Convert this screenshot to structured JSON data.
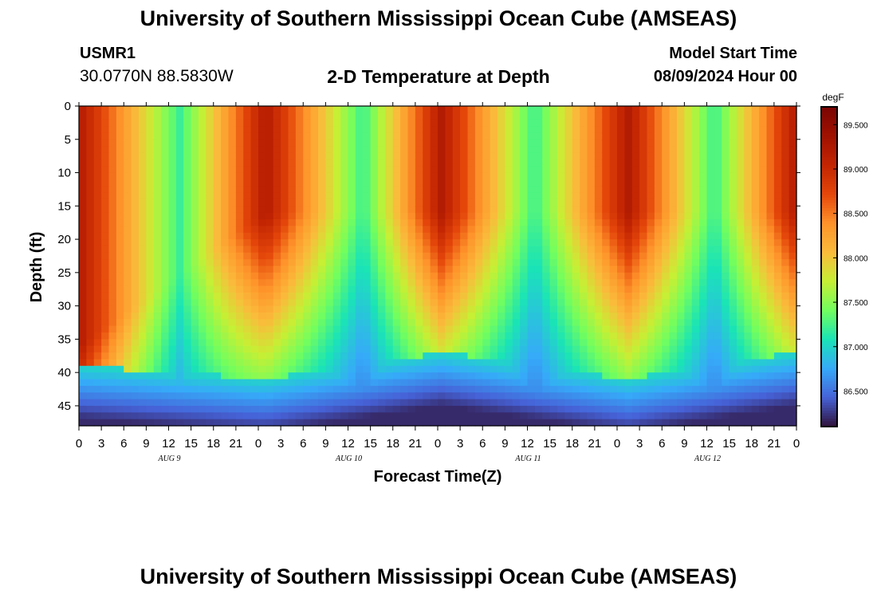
{
  "page": {
    "title": "University of Southern Mississippi Ocean Cube (AMSEAS)",
    "title_repeat": "University of Southern Mississippi Ocean Cube (AMSEAS)",
    "station_id": "USMR1",
    "station_coords": "30.0770N  88.5830W",
    "subtitle": "2-D Temperature at Depth",
    "model_start_label": "Model Start Time",
    "model_start_value": "08/09/2024 Hour 00"
  },
  "chart_data": {
    "type": "heatmap",
    "title": "2-D Temperature at Depth",
    "xlabel": "Forecast Time(Z)",
    "ylabel": "Depth (ft)",
    "units": "degF",
    "x_range_hours": [
      0,
      96
    ],
    "x_tick_hours": [
      0,
      3,
      6,
      9,
      12,
      15,
      18,
      21,
      24,
      27,
      30,
      33,
      36,
      39,
      42,
      45,
      48,
      51,
      54,
      57,
      60,
      63,
      66,
      69,
      72,
      75,
      78,
      81,
      84,
      87,
      90,
      93,
      96
    ],
    "x_tick_labels": [
      "0",
      "3",
      "6",
      "9",
      "12",
      "15",
      "18",
      "21",
      "0",
      "3",
      "6",
      "9",
      "12",
      "15",
      "18",
      "21",
      "0",
      "3",
      "6",
      "9",
      "12",
      "15",
      "18",
      "21",
      "0",
      "3",
      "6",
      "9",
      "12",
      "15",
      "18",
      "21",
      "0"
    ],
    "date_labels": [
      {
        "hour": 12,
        "label": "AUG 9"
      },
      {
        "hour": 36,
        "label": "AUG 10"
      },
      {
        "hour": 60,
        "label": "AUG 11"
      },
      {
        "hour": 84,
        "label": "AUG 12"
      }
    ],
    "y_range_ft": [
      0,
      48
    ],
    "y_ticks": [
      0,
      5,
      10,
      15,
      20,
      25,
      30,
      35,
      40,
      45
    ],
    "colorbar": {
      "min": 86.1,
      "max": 89.7,
      "ticks": [
        86.5,
        87.0,
        87.5,
        88.0,
        88.5,
        89.0,
        89.5
      ],
      "tick_labels": [
        "86.500",
        "87.000",
        "87.500",
        "88.000",
        "88.500",
        "89.000",
        "89.500"
      ],
      "colors": [
        "#30123b",
        "#4662d7",
        "#36aaf9",
        "#1ae4b6",
        "#72fe5e",
        "#c7ef34",
        "#fabb3b",
        "#fe922a",
        "#e4460a",
        "#c32503",
        "#a01101",
        "#7a0403"
      ]
    },
    "pattern": {
      "warm_band_hours": [
        0,
        25,
        48.5,
        73.5,
        96
      ],
      "cool_band_hours": [
        13.5,
        38,
        61,
        85
      ],
      "surface_warm_ft": [
        36,
        16,
        16,
        16,
        16
      ],
      "thermocline_ft": [
        39,
        41,
        37,
        41,
        37
      ],
      "bottom_temp_degF": 86.2
    }
  }
}
